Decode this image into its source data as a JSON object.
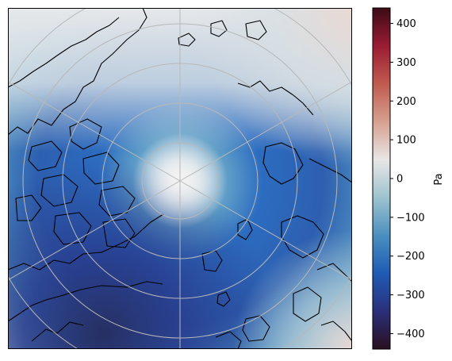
{
  "map": {
    "projection": "north-polar-stereographic",
    "field_colormap": "balance (diverging: dark navy - blue - light gray - red - dark maroon)",
    "gridlines": true,
    "coastlines": true,
    "colors": {
      "coastline": "#000000",
      "gridline": "#b8b8b8"
    }
  },
  "colorbar": {
    "label": "Pa",
    "range": [
      -440,
      440
    ],
    "ticks": [
      400,
      300,
      200,
      100,
      0,
      -100,
      -200,
      -300,
      -400
    ],
    "tick_labels": [
      "400",
      "300",
      "200",
      "100",
      "0",
      "−100",
      "−200",
      "−300",
      "−400"
    ],
    "stops": [
      "#2a1020",
      "#2b2f7a",
      "#1f5bb4",
      "#4a8fbf",
      "#9ec3cf",
      "#e8e6e6",
      "#d6a08e",
      "#c05a4e",
      "#9a1c33",
      "#3c0b16"
    ]
  }
}
